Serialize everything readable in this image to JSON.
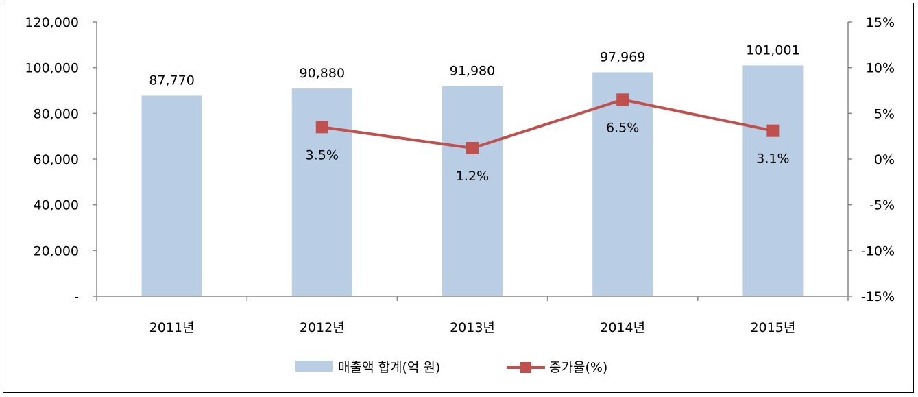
{
  "chart_data": {
    "type": "bar+line",
    "categories": [
      "2011년",
      "2012년",
      "2013년",
      "2014년",
      "2015년"
    ],
    "series": [
      {
        "name": "매출액 합계(억 원)",
        "type": "bar",
        "axis": "left",
        "values": [
          87770,
          90880,
          91980,
          97969,
          101001
        ],
        "labels": [
          "87,770",
          "90,880",
          "91,980",
          "97,969",
          "101,001"
        ],
        "color": "#b9cde5"
      },
      {
        "name": "증가율(%)",
        "type": "line",
        "axis": "right",
        "values": [
          null,
          3.5,
          1.2,
          6.5,
          3.1
        ],
        "labels": [
          "",
          "3.5%",
          "1.2%",
          "6.5%",
          "3.1%"
        ],
        "color": "#c0504d"
      }
    ],
    "y_left": {
      "min": 0,
      "max": 120000,
      "ticks": [
        0,
        20000,
        40000,
        60000,
        80000,
        100000,
        120000
      ],
      "tick_labels": [
        "-",
        "20,000",
        "40,000",
        "60,000",
        "80,000",
        "100,000",
        "120,000"
      ]
    },
    "y_right": {
      "min": -15,
      "max": 15,
      "ticks": [
        -15,
        -10,
        -5,
        0,
        5,
        10,
        15
      ],
      "tick_labels": [
        "-15%",
        "-10%",
        "-5%",
        "0%",
        "5%",
        "10%",
        "15%"
      ]
    },
    "grid": false,
    "legend_position": "bottom-center",
    "axis_color": "#868686"
  }
}
